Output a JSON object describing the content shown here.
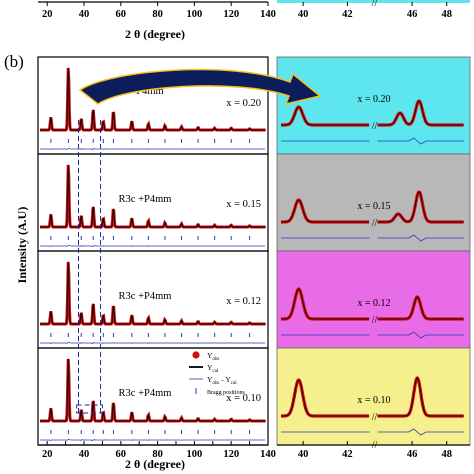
{
  "panel_label": "(b)",
  "top_strip": {
    "left_ticks": [
      "20",
      "40",
      "60",
      "80",
      "100",
      "120",
      "140"
    ],
    "right_ticks": [
      "40",
      "42",
      "46",
      "48"
    ],
    "xlabel": "2 θ (degree)"
  },
  "chart_data": {
    "type": "line",
    "ylabel": "Intensity (A.U)",
    "xlabel": "2 θ (degree)",
    "main_xlim": [
      15,
      140
    ],
    "main_ticks": [
      "20",
      "30",
      "40",
      "50",
      "60",
      "70",
      "80",
      "90",
      "100",
      "110",
      "120",
      "130",
      "140"
    ],
    "zoom_ticks": [
      "40",
      "42",
      "46",
      "48"
    ],
    "zoom_break_label": "//",
    "highlight_box_x": [
      36,
      50
    ],
    "dashed_lines_x": [
      37,
      49
    ],
    "rows": [
      {
        "phase": "P4mm",
        "x_label": "x = 0.20",
        "zoom_label": "x = 0.20",
        "zoom_bg": "#5ee6ee",
        "peaks": [
          [
            22,
            0.2
          ],
          [
            31.5,
            1.0
          ],
          [
            38.5,
            0.18
          ],
          [
            45,
            0.33
          ],
          [
            50.5,
            0.14
          ],
          [
            56,
            0.3
          ],
          [
            66,
            0.14
          ],
          [
            75,
            0.1
          ],
          [
            84,
            0.07
          ],
          [
            93,
            0.05
          ],
          [
            102,
            0.04
          ],
          [
            111,
            0.03
          ],
          [
            120,
            0.03
          ],
          [
            130,
            0.02
          ]
        ],
        "zoom_peaks": [
          [
            39.8,
            0.45
          ],
          [
            45.3,
            0.3
          ],
          [
            46.4,
            0.6
          ]
        ]
      },
      {
        "phase": "R3c +P4mm",
        "x_label": "x = 0.15",
        "zoom_label": "x = 0.15",
        "zoom_bg": "#b8b8b8",
        "peaks": [
          [
            22,
            0.2
          ],
          [
            31.5,
            1.0
          ],
          [
            38.5,
            0.18
          ],
          [
            45,
            0.33
          ],
          [
            50.5,
            0.14
          ],
          [
            56,
            0.3
          ],
          [
            66,
            0.14
          ],
          [
            75,
            0.1
          ],
          [
            84,
            0.07
          ],
          [
            93,
            0.05
          ],
          [
            102,
            0.04
          ],
          [
            111,
            0.03
          ],
          [
            120,
            0.03
          ],
          [
            130,
            0.02
          ]
        ],
        "zoom_peaks": [
          [
            39.8,
            0.55
          ],
          [
            45.2,
            0.2
          ],
          [
            46.4,
            0.75
          ]
        ]
      },
      {
        "phase": "R3c +P4mm",
        "x_label": "x = 0.12",
        "zoom_label": "x = 0.12",
        "zoom_bg": "#e86be8",
        "peaks": [
          [
            22,
            0.2
          ],
          [
            31.5,
            1.0
          ],
          [
            38.5,
            0.18
          ],
          [
            45,
            0.33
          ],
          [
            50.5,
            0.14
          ],
          [
            56,
            0.3
          ],
          [
            66,
            0.14
          ],
          [
            75,
            0.1
          ],
          [
            84,
            0.07
          ],
          [
            93,
            0.05
          ],
          [
            102,
            0.04
          ],
          [
            111,
            0.03
          ],
          [
            120,
            0.03
          ],
          [
            130,
            0.02
          ]
        ],
        "zoom_peaks": [
          [
            39.8,
            0.75
          ],
          [
            46.3,
            0.55
          ]
        ]
      },
      {
        "phase": "R3c +P4mm",
        "x_label": "x = 0.10",
        "zoom_label": "x = 0.10",
        "zoom_bg": "#f5ef8e",
        "peaks": [
          [
            22,
            0.2
          ],
          [
            31.5,
            1.0
          ],
          [
            38.5,
            0.18
          ],
          [
            45,
            0.33
          ],
          [
            50.5,
            0.14
          ],
          [
            56,
            0.3
          ],
          [
            66,
            0.14
          ],
          [
            75,
            0.1
          ],
          [
            84,
            0.07
          ],
          [
            93,
            0.05
          ],
          [
            102,
            0.04
          ],
          [
            111,
            0.03
          ],
          [
            120,
            0.03
          ],
          [
            130,
            0.02
          ]
        ],
        "zoom_peaks": [
          [
            39.8,
            0.9
          ],
          [
            46.3,
            0.95
          ]
        ]
      }
    ],
    "legend": [
      {
        "symbol": "dot",
        "label": "Y",
        "sub": "obs"
      },
      {
        "symbol": "line",
        "label": "Y",
        "sub": "cal"
      },
      {
        "symbol": "thin",
        "label": "Y",
        "sub": "obs",
        "label2": " - Y",
        "sub2": "cal"
      },
      {
        "symbol": "tick",
        "label": "Bragg positions"
      }
    ],
    "colors": {
      "observed": "#d01010",
      "calculated": "#000000",
      "difference": "#2a3ab8",
      "arrow_fill": "#0d1d5c",
      "arrow_edge": "#f2c21b"
    }
  }
}
